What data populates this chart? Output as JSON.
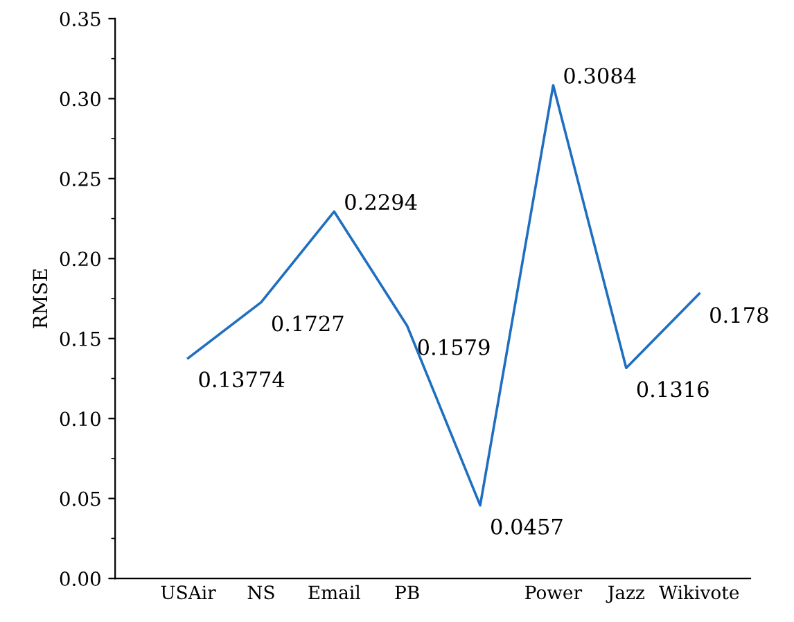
{
  "chart_data": {
    "type": "line",
    "ylabel": "RMSE",
    "categories": [
      "USAir",
      "NS",
      "Email",
      "PB",
      null,
      "Power",
      "Jazz",
      "Wikivote"
    ],
    "series": [
      {
        "color": "#1f6fc0",
        "values": [
          0.13774,
          0.1727,
          0.2294,
          0.1579,
          0.0457,
          0.3084,
          0.1316,
          0.178
        ],
        "value_labels": [
          "0.13774",
          "0.1727",
          "0.2294",
          "0.1579",
          "0.0457",
          "0.3084",
          "0.1316",
          "0.178"
        ]
      }
    ],
    "ylim": [
      0,
      0.35
    ],
    "yticks": [
      {
        "value": 0,
        "label": "0.00"
      },
      {
        "value": 0.05,
        "label": "0.05"
      },
      {
        "value": 0.1,
        "label": "0.10"
      },
      {
        "value": 0.15,
        "label": "0.15"
      },
      {
        "value": 0.2,
        "label": "0.20"
      },
      {
        "value": 0.25,
        "label": "0.25"
      },
      {
        "value": 0.3,
        "label": "0.30"
      },
      {
        "value": 0.35,
        "label": "0.35"
      }
    ],
    "grid": false,
    "legend": false,
    "marker": "none",
    "line_style": "solid"
  }
}
